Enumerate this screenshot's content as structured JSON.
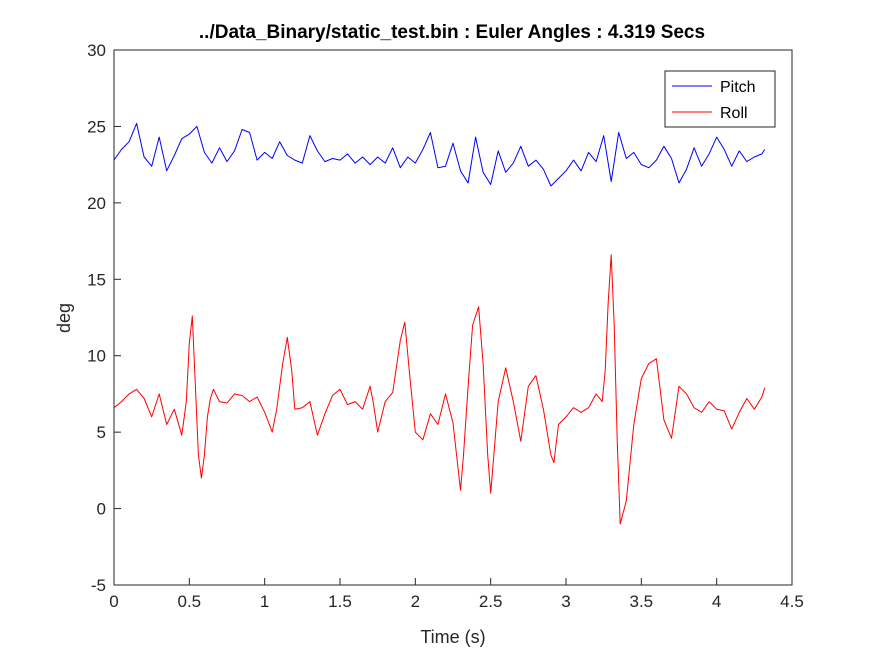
{
  "chart_data": {
    "type": "line",
    "title": "../Data_Binary/static_test.bin : Euler Angles : 4.319 Secs",
    "xlabel": "Time (s)",
    "ylabel": "deg",
    "xlim": [
      0,
      4.5
    ],
    "ylim": [
      -5,
      30
    ],
    "xticks": [
      0,
      0.5,
      1,
      1.5,
      2,
      2.5,
      3,
      3.5,
      4,
      4.5
    ],
    "xtick_labels": [
      "0",
      "0.5",
      "1",
      "1.5",
      "2",
      "2.5",
      "3",
      "3.5",
      "4",
      "4.5"
    ],
    "yticks": [
      -5,
      0,
      5,
      10,
      15,
      20,
      25,
      30
    ],
    "ytick_labels": [
      "-5",
      "0",
      "5",
      "10",
      "15",
      "20",
      "25",
      "30"
    ],
    "grid": false,
    "legend_position": "top-right",
    "series": [
      {
        "name": "Pitch",
        "color": "#0000ff",
        "x": [
          0,
          0.05,
          0.1,
          0.15,
          0.2,
          0.25,
          0.3,
          0.35,
          0.4,
          0.45,
          0.5,
          0.55,
          0.6,
          0.65,
          0.7,
          0.75,
          0.8,
          0.85,
          0.9,
          0.95,
          1,
          1.05,
          1.1,
          1.15,
          1.2,
          1.25,
          1.3,
          1.35,
          1.4,
          1.45,
          1.5,
          1.55,
          1.6,
          1.65,
          1.7,
          1.75,
          1.8,
          1.85,
          1.9,
          1.95,
          2,
          2.05,
          2.1,
          2.15,
          2.2,
          2.25,
          2.3,
          2.35,
          2.4,
          2.45,
          2.5,
          2.55,
          2.6,
          2.65,
          2.7,
          2.75,
          2.8,
          2.85,
          2.9,
          2.95,
          3,
          3.05,
          3.1,
          3.15,
          3.2,
          3.25,
          3.3,
          3.35,
          3.4,
          3.45,
          3.5,
          3.55,
          3.6,
          3.65,
          3.7,
          3.75,
          3.8,
          3.85,
          3.9,
          3.95,
          4,
          4.05,
          4.1,
          4.15,
          4.2,
          4.25,
          4.3,
          4.319
        ],
        "y": [
          22.8,
          23.5,
          24.0,
          25.2,
          23.0,
          22.4,
          24.3,
          22.1,
          23.1,
          24.2,
          24.5,
          25.0,
          23.3,
          22.6,
          23.6,
          22.7,
          23.4,
          24.8,
          24.6,
          22.8,
          23.3,
          22.9,
          24.0,
          23.1,
          22.8,
          22.6,
          24.4,
          23.4,
          22.7,
          22.9,
          22.8,
          23.2,
          22.6,
          23.0,
          22.5,
          23.0,
          22.6,
          23.6,
          22.3,
          23.0,
          22.6,
          23.5,
          24.6,
          22.3,
          22.4,
          23.9,
          22.1,
          21.3,
          24.3,
          22.0,
          21.2,
          23.4,
          22.0,
          22.6,
          23.7,
          22.4,
          22.8,
          22.2,
          21.1,
          21.6,
          22.1,
          22.8,
          22.1,
          23.3,
          22.7,
          24.4,
          21.4,
          24.6,
          22.9,
          23.3,
          22.5,
          22.3,
          22.8,
          23.7,
          22.9,
          21.3,
          22.2,
          23.6,
          22.4,
          23.2,
          24.3,
          23.5,
          22.4,
          23.4,
          22.7,
          23.0,
          23.2,
          23.5
        ]
      },
      {
        "name": "Roll",
        "color": "#ff0000",
        "x": [
          0,
          0.05,
          0.1,
          0.15,
          0.2,
          0.25,
          0.3,
          0.35,
          0.4,
          0.45,
          0.48,
          0.5,
          0.52,
          0.54,
          0.56,
          0.58,
          0.6,
          0.62,
          0.64,
          0.66,
          0.7,
          0.75,
          0.8,
          0.85,
          0.9,
          0.95,
          1,
          1.05,
          1.08,
          1.12,
          1.15,
          1.18,
          1.2,
          1.25,
          1.3,
          1.35,
          1.4,
          1.45,
          1.5,
          1.55,
          1.6,
          1.65,
          1.7,
          1.72,
          1.75,
          1.8,
          1.85,
          1.9,
          1.93,
          1.96,
          2.0,
          2.05,
          2.1,
          2.15,
          2.2,
          2.25,
          2.3,
          2.32,
          2.35,
          2.38,
          2.42,
          2.45,
          2.48,
          2.5,
          2.55,
          2.6,
          2.65,
          2.7,
          2.75,
          2.8,
          2.85,
          2.9,
          2.92,
          2.95,
          3.0,
          3.05,
          3.1,
          3.15,
          3.2,
          3.24,
          3.26,
          3.28,
          3.3,
          3.32,
          3.34,
          3.36,
          3.4,
          3.45,
          3.5,
          3.55,
          3.6,
          3.65,
          3.7,
          3.75,
          3.8,
          3.85,
          3.9,
          3.95,
          4.0,
          4.05,
          4.1,
          4.15,
          4.2,
          4.25,
          4.3,
          4.319
        ],
        "y": [
          6.6,
          7.0,
          7.5,
          7.8,
          7.2,
          6.0,
          7.5,
          5.5,
          6.5,
          4.8,
          7.0,
          10.8,
          12.6,
          8.0,
          3.5,
          2.0,
          3.5,
          6.0,
          7.2,
          7.8,
          7.0,
          6.9,
          7.5,
          7.4,
          7.0,
          7.3,
          6.3,
          5.0,
          6.5,
          9.5,
          11.2,
          9.0,
          6.5,
          6.6,
          7.0,
          4.8,
          6.2,
          7.4,
          7.8,
          6.8,
          7.0,
          6.5,
          8.0,
          7.0,
          5.0,
          7.0,
          7.6,
          11.0,
          12.2,
          9.0,
          5.0,
          4.5,
          6.2,
          5.5,
          7.5,
          5.6,
          1.2,
          3.5,
          8.0,
          12.0,
          13.2,
          9.5,
          3.5,
          1.0,
          7.0,
          9.2,
          7.0,
          4.4,
          8.0,
          8.7,
          6.5,
          3.5,
          3.0,
          5.5,
          6.0,
          6.6,
          6.3,
          6.6,
          7.5,
          7.0,
          9.0,
          13.5,
          16.6,
          12.0,
          4.5,
          -1.0,
          0.5,
          5.5,
          8.5,
          9.5,
          9.8,
          5.8,
          4.6,
          8.0,
          7.5,
          6.6,
          6.3,
          7.0,
          6.5,
          6.4,
          5.2,
          6.3,
          7.2,
          6.5,
          7.3,
          7.9
        ]
      }
    ]
  }
}
